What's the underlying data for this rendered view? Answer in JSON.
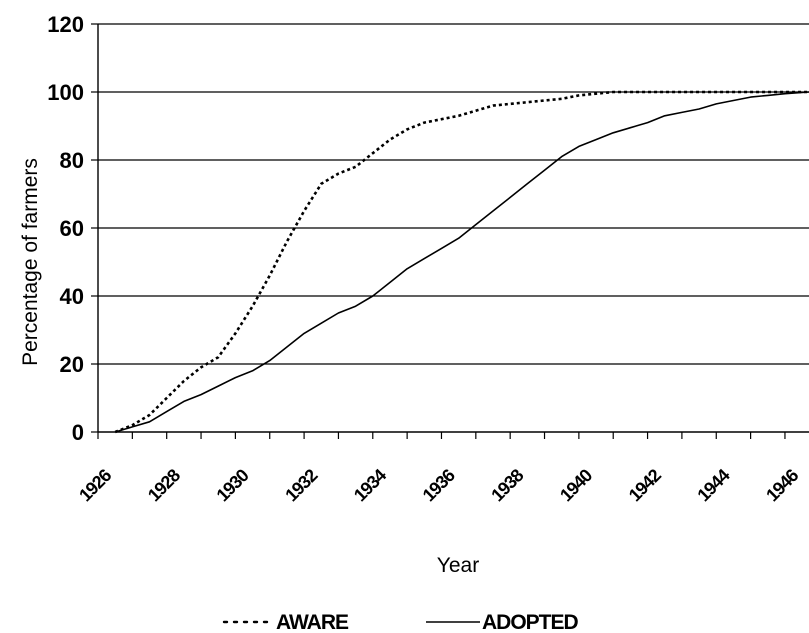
{
  "chart_data": {
    "type": "line",
    "title": "",
    "xlabel": "Year",
    "ylabel": "Percentage of farmers",
    "xlim": [
      1926,
      1946.7
    ],
    "ylim": [
      0,
      120
    ],
    "y_ticks": [
      "0",
      "20",
      "40",
      "60",
      "80",
      "100",
      "120"
    ],
    "x_tick_labels": [
      "1926",
      "1928",
      "1930",
      "1932",
      "1934",
      "1936",
      "1938",
      "1940",
      "1942",
      "1944",
      "1946"
    ],
    "grid": "horizontal",
    "legend_position": "bottom",
    "series": [
      {
        "name": "AWARE",
        "style": "dotted",
        "color": "#000000",
        "x": [
          1926.5,
          1927,
          1927.5,
          1928,
          1928.5,
          1929,
          1929.5,
          1930,
          1930.5,
          1931,
          1931.5,
          1932,
          1932.5,
          1933,
          1933.5,
          1934,
          1934.5,
          1935,
          1935.5,
          1936,
          1936.5,
          1937,
          1937.5,
          1938,
          1938.5,
          1939,
          1939.5,
          1940,
          1940.5,
          1941,
          1941.5,
          1942,
          1943,
          1944,
          1945,
          1946,
          1946.7
        ],
        "values": [
          0,
          2,
          5,
          10,
          15,
          19,
          22,
          29,
          37,
          46,
          56,
          65,
          73,
          76,
          78,
          82,
          86,
          89,
          91,
          92,
          93,
          94.5,
          96,
          96.5,
          97,
          97.5,
          98,
          99,
          99.5,
          100,
          100,
          100,
          100,
          100,
          100,
          100,
          100
        ]
      },
      {
        "name": "ADOPTED",
        "style": "solid",
        "color": "#000000",
        "x": [
          1926.5,
          1927,
          1927.5,
          1928,
          1928.5,
          1929,
          1929.5,
          1930,
          1930.5,
          1931,
          1931.5,
          1932,
          1932.5,
          1933,
          1933.5,
          1934,
          1934.5,
          1935,
          1935.5,
          1936,
          1936.5,
          1937,
          1937.5,
          1938,
          1938.5,
          1939,
          1939.5,
          1940,
          1940.5,
          1941,
          1941.5,
          1942,
          1942.5,
          1943,
          1943.5,
          1944,
          1944.5,
          1945,
          1945.5,
          1946,
          1946.7
        ],
        "values": [
          0,
          1.5,
          3,
          6,
          9,
          11,
          13.5,
          16,
          18,
          21,
          25,
          29,
          32,
          35,
          37,
          40,
          44,
          48,
          51,
          54,
          57,
          61,
          65,
          69,
          73,
          77,
          81,
          84,
          86,
          88,
          89.5,
          91,
          93,
          94,
          95,
          96.5,
          97.5,
          98.5,
          99,
          99.5,
          100
        ]
      }
    ]
  }
}
